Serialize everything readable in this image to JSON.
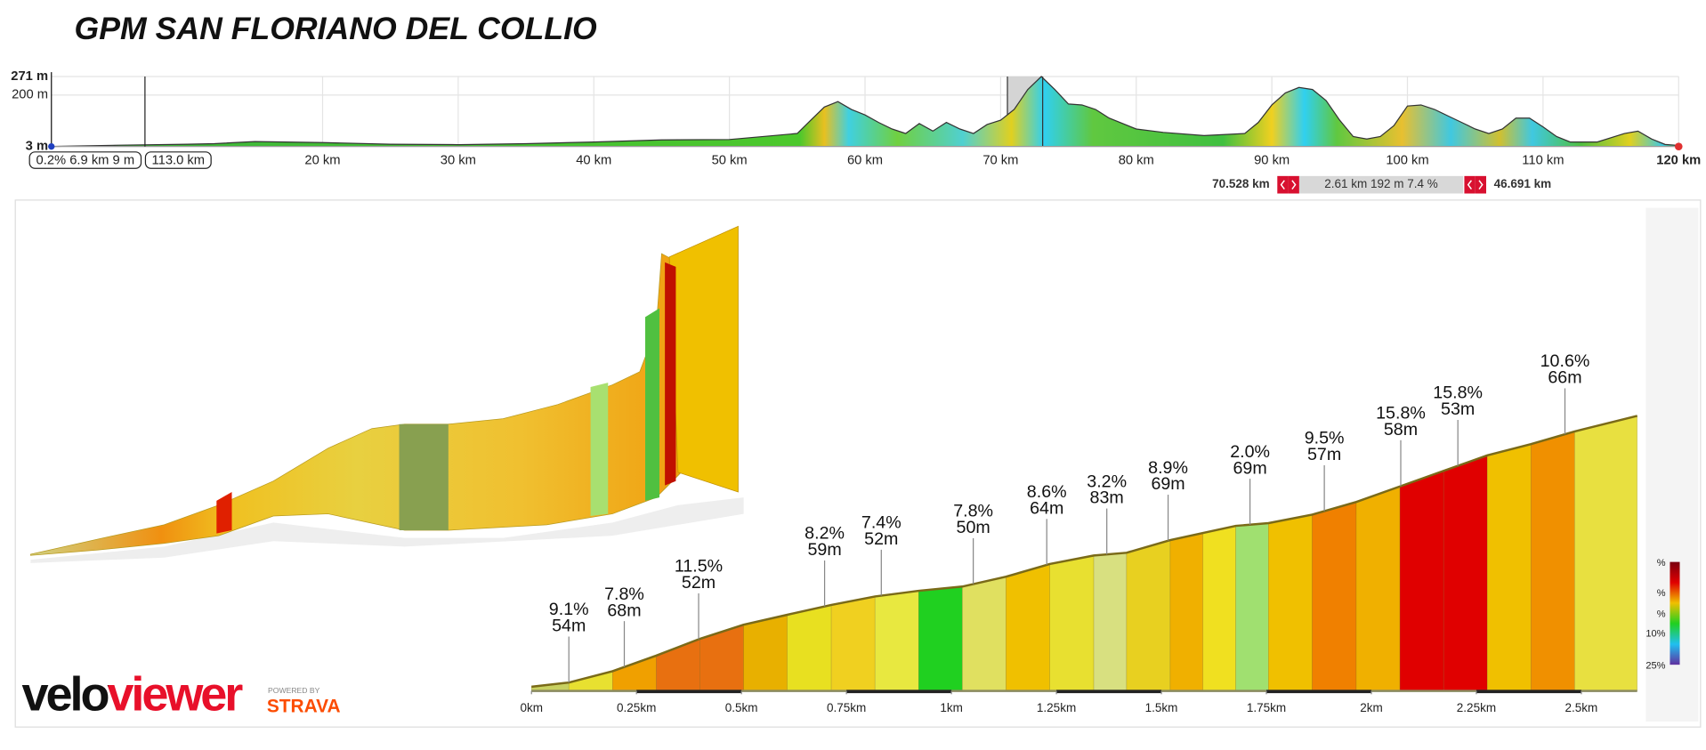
{
  "chart_data": [
    {
      "type": "area",
      "title": "GPM SAN FLORIANO DEL COLLIO",
      "x": [
        0,
        5,
        10,
        12,
        15,
        20,
        25,
        30,
        35,
        40,
        45,
        50,
        55,
        56,
        57,
        58,
        59,
        60,
        61,
        62,
        63,
        64,
        65,
        66,
        67,
        68,
        69,
        70,
        71,
        72,
        73,
        74,
        75,
        76,
        77,
        78,
        80,
        82,
        85,
        88,
        89,
        90,
        91,
        92,
        93,
        94,
        95,
        96,
        97,
        98,
        99,
        100,
        101,
        102,
        103,
        104,
        105,
        106,
        107,
        108,
        109,
        110,
        111,
        112,
        114,
        116,
        117,
        118,
        119,
        120
      ],
      "values": [
        3,
        8,
        12,
        14,
        22,
        18,
        12,
        10,
        14,
        20,
        28,
        30,
        53,
        104,
        154,
        175,
        145,
        124,
        95,
        70,
        53,
        91,
        62,
        95,
        70,
        53,
        87,
        104,
        145,
        221,
        271,
        221,
        166,
        162,
        145,
        112,
        70,
        57,
        45,
        53,
        95,
        162,
        208,
        229,
        221,
        179,
        104,
        41,
        32,
        41,
        83,
        158,
        162,
        145,
        120,
        95,
        70,
        53,
        70,
        112,
        112,
        78,
        41,
        20,
        20,
        53,
        62,
        32,
        11,
        7
      ],
      "xlim": [
        0,
        120
      ],
      "ylim": [
        3,
        271
      ],
      "xticks": [
        {
          "value": 20,
          "label": "20 km"
        },
        {
          "value": 30,
          "label": "30 km"
        },
        {
          "value": 40,
          "label": "40 km"
        },
        {
          "value": 50,
          "label": "50 km"
        },
        {
          "value": 60,
          "label": "60 km"
        },
        {
          "value": 70,
          "label": "70 km"
        },
        {
          "value": 80,
          "label": "80 km"
        },
        {
          "value": 90,
          "label": "90 km"
        },
        {
          "value": 100,
          "label": "100 km"
        },
        {
          "value": 110,
          "label": "110 km"
        },
        {
          "value": 120,
          "label": "120 km"
        }
      ],
      "yticks": [
        {
          "value": 3,
          "label": "3 m"
        },
        {
          "value": 200,
          "label": "200 m"
        },
        {
          "value": 271,
          "label": "271 m"
        }
      ],
      "grid": true,
      "cursor": {
        "x": 6.9,
        "label": "0.2% 6.9 km 9 m",
        "remaining": "113.0 km"
      },
      "selection": {
        "range": [
          70.5,
          73.1
        ],
        "start": "70.528 km",
        "summary": "2.61 km 192 m 7.4 %",
        "end": "46.691 km"
      }
    },
    {
      "type": "climb",
      "x": [
        0,
        0.089,
        0.193,
        0.297,
        0.401,
        0.505,
        0.609,
        0.714,
        0.818,
        0.922,
        1.026,
        1.13,
        1.234,
        1.339,
        1.417,
        1.521,
        1.599,
        1.677,
        1.755,
        1.859,
        1.964,
        2.068,
        2.172,
        2.276,
        2.38,
        2.484,
        2.633
      ],
      "values": [
        79,
        82,
        90,
        101,
        113,
        123,
        130,
        137,
        143,
        147,
        150,
        157,
        166,
        172,
        174,
        183,
        188,
        193,
        195,
        201,
        210,
        221,
        232,
        243,
        251,
        260,
        271
      ],
      "xlim": [
        0,
        2.633
      ],
      "ylim": [
        76,
        300
      ],
      "xticks": [
        {
          "value": 0,
          "label": "0km"
        },
        {
          "value": 0.25,
          "label": "0.25km"
        },
        {
          "value": 0.5,
          "label": "0.5km"
        },
        {
          "value": 0.75,
          "label": "0.75km"
        },
        {
          "value": 1,
          "label": "1km"
        },
        {
          "value": 1.25,
          "label": "1.25km"
        },
        {
          "value": 1.5,
          "label": "1.5km"
        },
        {
          "value": 1.75,
          "label": "1.75km"
        },
        {
          "value": 2,
          "label": "2km"
        },
        {
          "value": 2.25,
          "label": "2.25km"
        },
        {
          "value": 2.5,
          "label": "2.5km"
        }
      ],
      "strip_colors": [
        "#c8d060",
        "#e8e030",
        "#f0a000",
        "#e87010",
        "#e87010",
        "#e8b000",
        "#e8e020",
        "#f0d020",
        "#e8e840",
        "#20d020",
        "#e0e060",
        "#f0c000",
        "#e8e030",
        "#d8e080",
        "#e8d020",
        "#f0b000",
        "#f0e020",
        "#a0e070",
        "#f0c000",
        "#f08000",
        "#f0b000",
        "#e00000",
        "#e00000",
        "#f0c000",
        "#f09000",
        "#e8e040"
      ],
      "annotations": [
        {
          "x": 0.089,
          "grade": "9.1%",
          "length": "54m"
        },
        {
          "x": 0.221,
          "grade": "7.8%",
          "length": "68m"
        },
        {
          "x": 0.398,
          "grade": "11.5%",
          "length": "52m"
        },
        {
          "x": 0.698,
          "grade": "8.2%",
          "length": "59m"
        },
        {
          "x": 0.833,
          "grade": "7.4%",
          "length": "52m"
        },
        {
          "x": 1.052,
          "grade": "7.8%",
          "length": "50m"
        },
        {
          "x": 1.227,
          "grade": "8.6%",
          "length": "64m"
        },
        {
          "x": 1.37,
          "grade": "3.2%",
          "length": "83m"
        },
        {
          "x": 1.516,
          "grade": "8.9%",
          "length": "69m"
        },
        {
          "x": 1.711,
          "grade": "2.0%",
          "length": "69m"
        },
        {
          "x": 1.888,
          "grade": "9.5%",
          "length": "57m"
        },
        {
          "x": 2.07,
          "grade": "15.8%",
          "length": "58m"
        },
        {
          "x": 2.206,
          "grade": "15.8%",
          "length": "53m"
        },
        {
          "x": 2.461,
          "grade": "10.6%",
          "length": "66m"
        }
      ],
      "legend": {
        "labels": [
          "%",
          "%",
          "%",
          "10%",
          "25%"
        ],
        "colors": [
          "#7a0010",
          "#e00000",
          "#f0c000",
          "#20d020",
          "#20c0f0",
          "#6030a0"
        ]
      }
    }
  ],
  "logo": {
    "name": "veloviewer",
    "powered": "POWERED BY",
    "partner": "STRAVA"
  }
}
